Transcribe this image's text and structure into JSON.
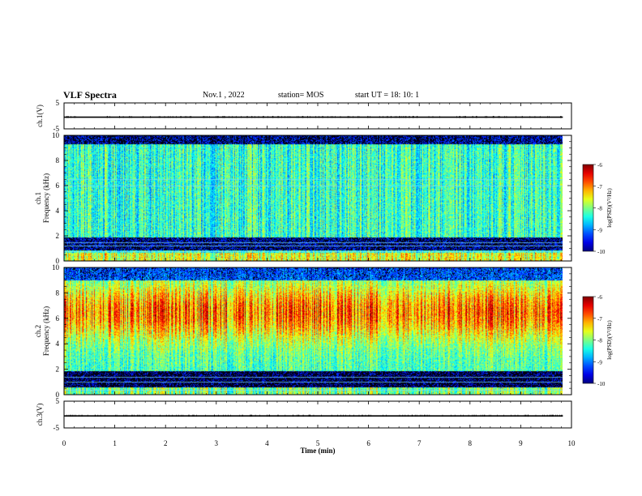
{
  "header": {
    "title": "VLF Spectra",
    "date": "Nov.1  , 2022",
    "station": "station= MOS",
    "start_ut": "start  UT =   18: 10: 1"
  },
  "chart_data": [
    {
      "type": "line",
      "id": "ch1-waveform",
      "ylabel": "ch.1(V)",
      "ylim": [
        -5,
        5
      ],
      "yticks": [
        5,
        -5
      ],
      "x": [
        0,
        9.83
      ],
      "y": [
        -0.5,
        -0.5
      ],
      "color": "#000000"
    },
    {
      "type": "heatmap",
      "id": "ch1-spectrogram",
      "ylabel": "ch.1\nFrequency (kHz)",
      "ylim": [
        0,
        10
      ],
      "yticks": [
        0,
        2,
        4,
        6,
        8,
        10
      ],
      "xlim": [
        0,
        10
      ],
      "data_end_min": 9.83,
      "colorbar": {
        "label": "log(PSD)(V²/Hz)",
        "range": [
          -10,
          -6
        ],
        "ticks": [
          -6,
          -7,
          -8,
          -9,
          -10
        ]
      }
    },
    {
      "type": "heatmap",
      "id": "ch2-spectrogram",
      "ylabel": "ch.2\nFrequency (kHz)",
      "ylim": [
        0,
        10
      ],
      "yticks": [
        0,
        2,
        4,
        6,
        8,
        10
      ],
      "xlim": [
        0,
        10
      ],
      "data_end_min": 9.83,
      "colorbar": {
        "label": "log(PSD)(V²/Hz)",
        "range": [
          -10,
          -6
        ],
        "ticks": [
          -6,
          -7,
          -8,
          -9,
          -10
        ]
      }
    },
    {
      "type": "line",
      "id": "ch3-waveform",
      "ylabel": "ch.3(V)",
      "ylim": [
        -5,
        5
      ],
      "yticks": [
        5,
        -5
      ],
      "x": [
        0,
        9.83
      ],
      "y": [
        -0.5,
        -0.5
      ],
      "color": "#000000"
    }
  ],
  "xaxis": {
    "label": "Time (min)",
    "range": [
      0,
      10
    ],
    "ticks": [
      "0",
      "1",
      "2",
      "3",
      "4",
      "5",
      "6",
      "7",
      "8",
      "9",
      "10"
    ]
  }
}
